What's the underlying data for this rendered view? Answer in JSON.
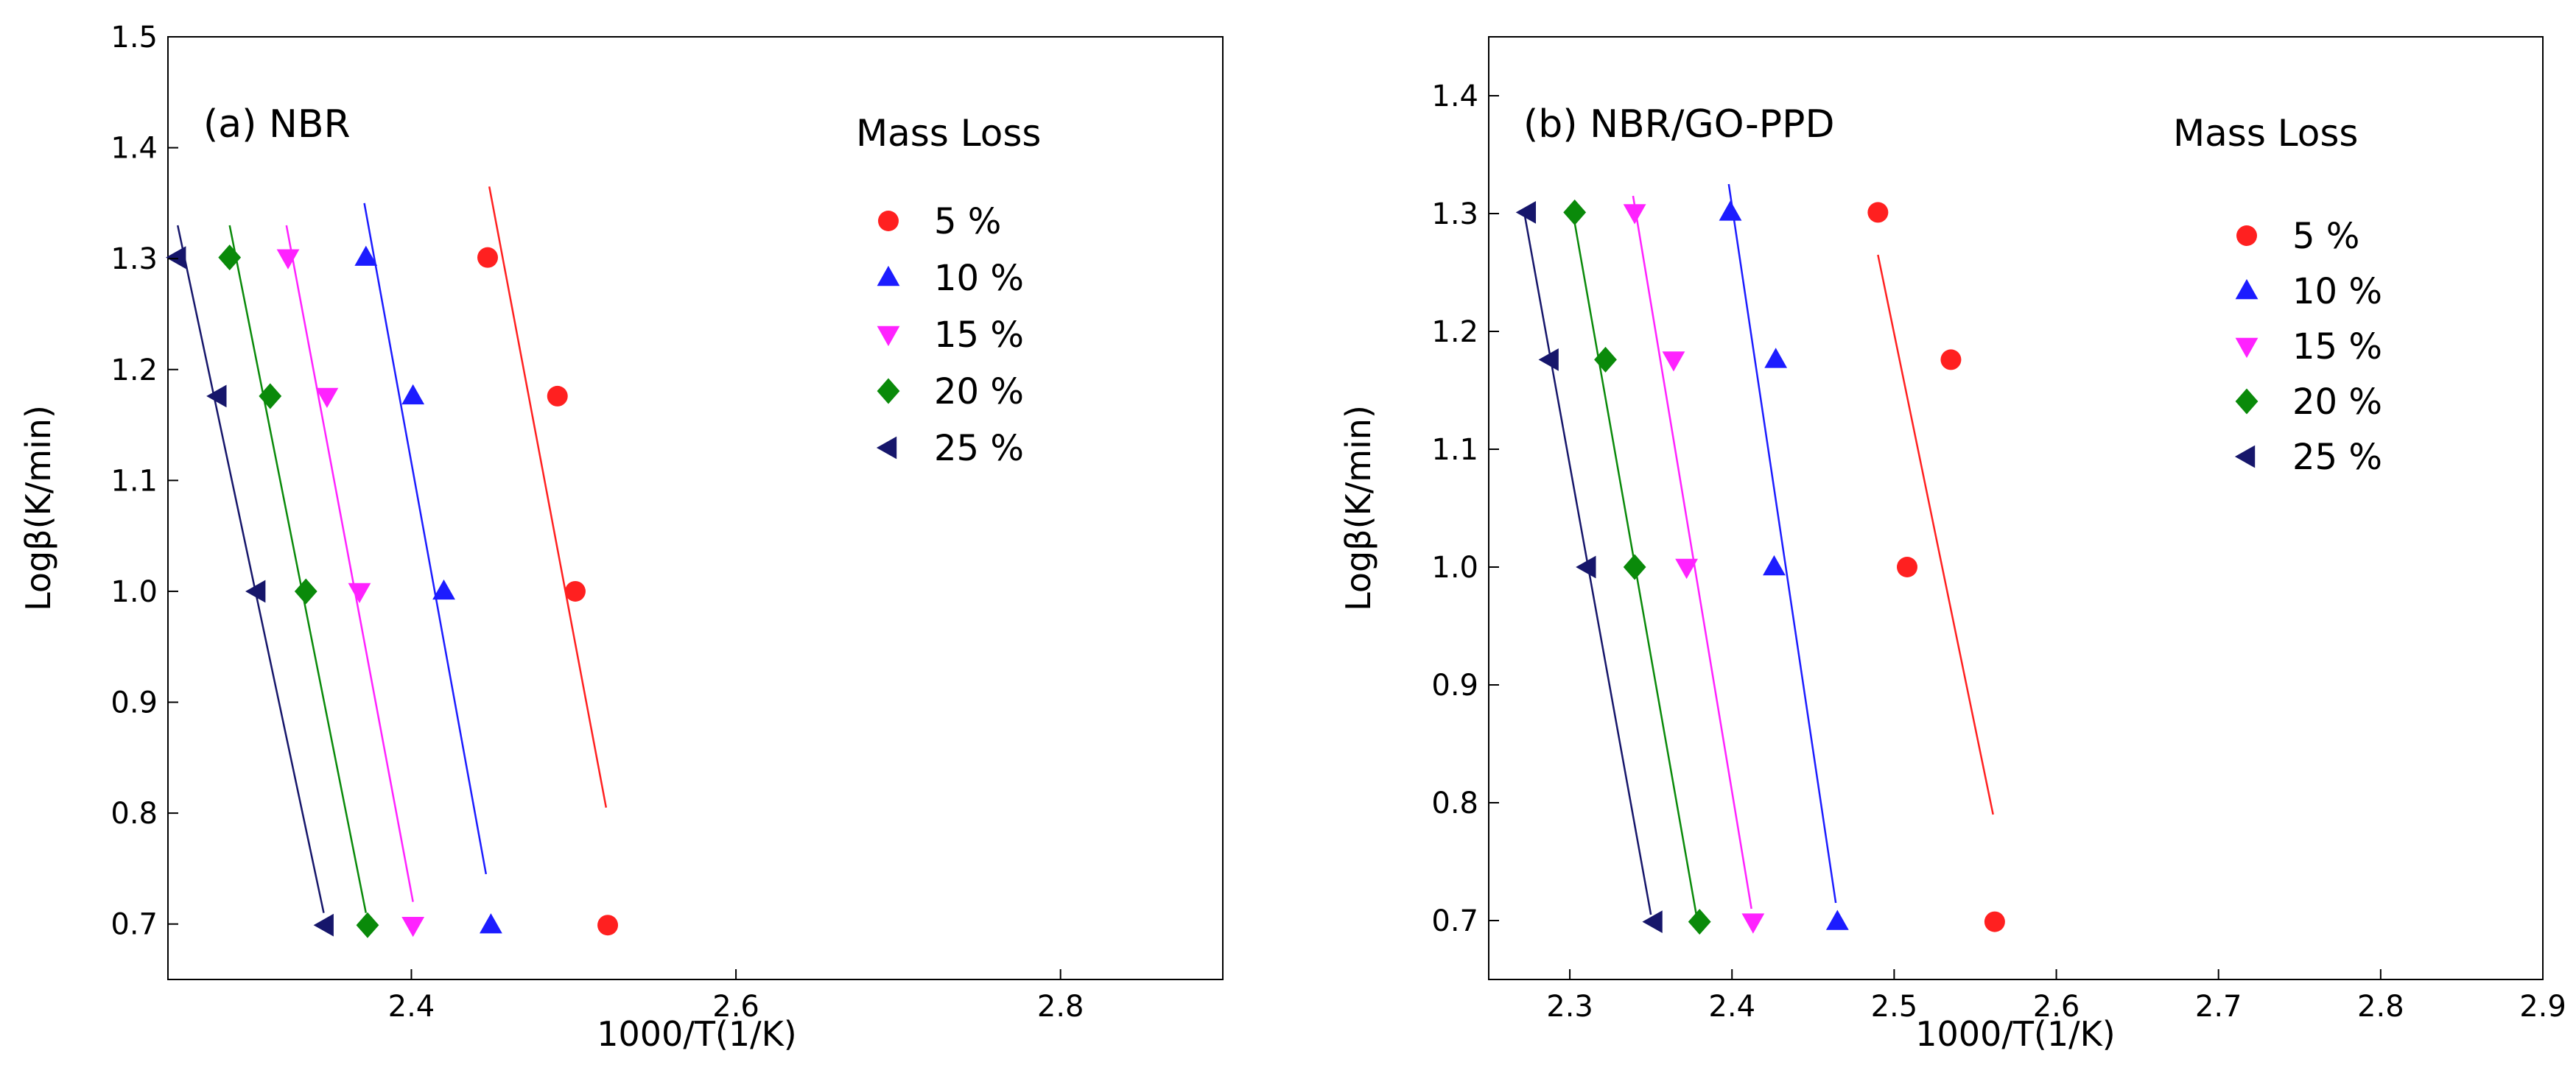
{
  "chart_data": [
    {
      "type": "scatter",
      "panel_label": "(a) NBR",
      "xlabel": "1000/T(1/K)",
      "ylabel": "Logβ(K/min)",
      "xlim": [
        2.25,
        2.9
      ],
      "ylim": [
        0.65,
        1.5
      ],
      "xticks": [
        2.4,
        2.6,
        2.8
      ],
      "xtick_labels": [
        "2.4",
        "2.6",
        "2.8"
      ],
      "yticks": [
        0.7,
        0.8,
        0.9,
        1.0,
        1.1,
        1.2,
        1.3,
        1.4,
        1.5
      ],
      "ytick_labels": [
        "0.7",
        "0.8",
        "0.9",
        "1.0",
        "1.1",
        "1.2",
        "1.3",
        "1.4",
        "1.5"
      ],
      "grid": false,
      "legend": {
        "title": "Mass Loss",
        "placement": "top-right"
      },
      "series": [
        {
          "name": "5 %",
          "marker": "circle",
          "color": "#ff2020",
          "points": [
            [
              2.447,
              1.301
            ],
            [
              2.49,
              1.176
            ],
            [
              2.501,
              1.0
            ],
            [
              2.521,
              0.699
            ]
          ],
          "fit": [
            [
              2.448,
              1.365
            ],
            [
              2.52,
              0.805
            ]
          ]
        },
        {
          "name": "10 %",
          "marker": "triangle-up",
          "color": "#1c1cff",
          "points": [
            [
              2.372,
              1.301
            ],
            [
              2.401,
              1.176
            ],
            [
              2.42,
              1.0
            ],
            [
              2.449,
              0.699
            ]
          ],
          "fit": [
            [
              2.371,
              1.35
            ],
            [
              2.446,
              0.745
            ]
          ]
        },
        {
          "name": "15 %",
          "marker": "triangle-down",
          "color": "#ff22ff",
          "points": [
            [
              2.324,
              1.301
            ],
            [
              2.348,
              1.176
            ],
            [
              2.368,
              1.0
            ],
            [
              2.401,
              0.699
            ]
          ],
          "fit": [
            [
              2.323,
              1.33
            ],
            [
              2.401,
              0.72
            ]
          ]
        },
        {
          "name": "20 %",
          "marker": "diamond",
          "color": "#0a8a0a",
          "points": [
            [
              2.288,
              1.301
            ],
            [
              2.313,
              1.176
            ],
            [
              2.335,
              1.0
            ],
            [
              2.373,
              0.699
            ]
          ],
          "fit": [
            [
              2.288,
              1.33
            ],
            [
              2.372,
              0.71
            ]
          ]
        },
        {
          "name": "25 %",
          "marker": "triangle-left",
          "color": "#16166b",
          "points": [
            [
              2.256,
              1.301
            ],
            [
              2.281,
              1.176
            ],
            [
              2.305,
              1.0
            ],
            [
              2.347,
              0.699
            ]
          ],
          "fit": [
            [
              2.256,
              1.33
            ],
            [
              2.346,
              0.71
            ]
          ]
        }
      ]
    },
    {
      "type": "scatter",
      "panel_label": "(b) NBR/GO-PPD",
      "xlabel": "1000/T(1/K)",
      "ylabel": "Logβ(K/min)",
      "xlim": [
        2.25,
        2.9
      ],
      "ylim": [
        0.65,
        1.45
      ],
      "xticks": [
        2.3,
        2.4,
        2.5,
        2.6,
        2.7,
        2.8,
        2.9
      ],
      "xtick_labels": [
        "2.3",
        "2.4",
        "2.5",
        "2.6",
        "2.7",
        "2.8",
        "2.9"
      ],
      "yticks": [
        0.7,
        0.8,
        0.9,
        1.0,
        1.1,
        1.2,
        1.3,
        1.4
      ],
      "ytick_labels": [
        "0.7",
        "0.8",
        "0.9",
        "1.0",
        "1.1",
        "1.2",
        "1.3",
        "1.4"
      ],
      "grid": false,
      "legend": {
        "title": "Mass Loss",
        "placement": "top-right"
      },
      "series": [
        {
          "name": "5 %",
          "marker": "circle",
          "color": "#ff2020",
          "points": [
            [
              2.49,
              1.301
            ],
            [
              2.535,
              1.176
            ],
            [
              2.508,
              1.0
            ],
            [
              2.562,
              0.699
            ]
          ],
          "fit": [
            [
              2.49,
              1.265
            ],
            [
              2.561,
              0.79
            ]
          ]
        },
        {
          "name": "10 %",
          "marker": "triangle-up",
          "color": "#1c1cff",
          "points": [
            [
              2.399,
              1.301
            ],
            [
              2.427,
              1.176
            ],
            [
              2.426,
              1.0
            ],
            [
              2.465,
              0.699
            ]
          ],
          "fit": [
            [
              2.398,
              1.325
            ],
            [
              2.464,
              0.715
            ]
          ]
        },
        {
          "name": "15 %",
          "marker": "triangle-down",
          "color": "#ff22ff",
          "points": [
            [
              2.34,
              1.301
            ],
            [
              2.364,
              1.176
            ],
            [
              2.372,
              1.0
            ],
            [
              2.413,
              0.699
            ]
          ],
          "fit": [
            [
              2.339,
              1.315
            ],
            [
              2.412,
              0.71
            ]
          ]
        },
        {
          "name": "20 %",
          "marker": "diamond",
          "color": "#0a8a0a",
          "points": [
            [
              2.303,
              1.301
            ],
            [
              2.322,
              1.176
            ],
            [
              2.34,
              1.0
            ],
            [
              2.38,
              0.699
            ]
          ],
          "fit": [
            [
              2.302,
              1.3
            ],
            [
              2.378,
              0.705
            ]
          ]
        },
        {
          "name": "25 %",
          "marker": "triangle-left",
          "color": "#16166b",
          "points": [
            [
              2.274,
              1.301
            ],
            [
              2.288,
              1.176
            ],
            [
              2.311,
              1.0
            ],
            [
              2.352,
              0.699
            ]
          ],
          "fit": [
            [
              2.272,
              1.3
            ],
            [
              2.35,
              0.705
            ]
          ]
        }
      ]
    }
  ]
}
